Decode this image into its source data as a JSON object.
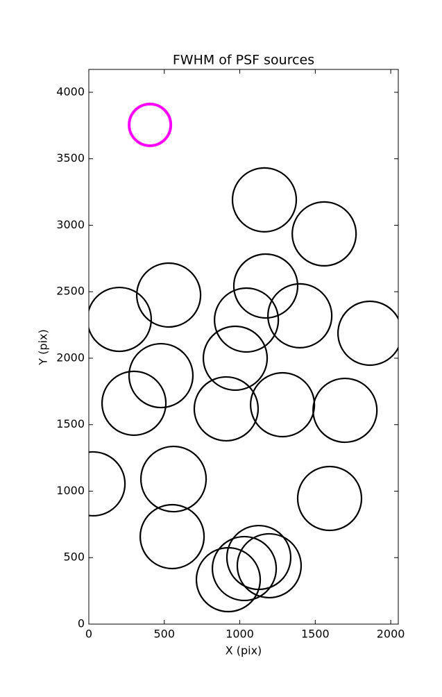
{
  "chart_data": {
    "type": "scatter",
    "title": "FWHM of PSF sources",
    "x_label": "X (pix)",
    "y_label": "Y (pix)",
    "xlim": [
      0,
      2050
    ],
    "ylim": [
      0,
      4172
    ],
    "xticks": [
      0,
      500,
      1000,
      1500,
      2000
    ],
    "yticks": [
      0,
      500,
      1000,
      1500,
      2000,
      2500,
      3000,
      3500,
      4000
    ],
    "series": [
      {
        "color": "#ff00ff",
        "x": [
          405
        ],
        "y": [
          3755
        ],
        "sizes": [
          30
        ]
      },
      {
        "color": "#000000",
        "x": [
          1163,
          1559,
          1172,
          529,
          1044,
          1398,
          202,
          1862,
          970,
          478,
          299,
          910,
          1283,
          1697,
          28,
          561,
          1595,
          552,
          1126,
          1195,
          1030,
          924
        ],
        "y": [
          3191,
          2935,
          2543,
          2475,
          2287,
          2319,
          2292,
          2188,
          2000,
          1869,
          1661,
          1619,
          1650,
          1608,
          1055,
          1091,
          945,
          658,
          501,
          439,
          418,
          334
        ],
        "sizes": [
          46,
          46,
          46,
          46,
          46,
          46,
          46,
          46,
          46,
          46,
          46,
          46,
          46,
          46,
          46,
          47,
          46,
          46,
          46,
          46,
          46,
          46
        ]
      }
    ]
  }
}
